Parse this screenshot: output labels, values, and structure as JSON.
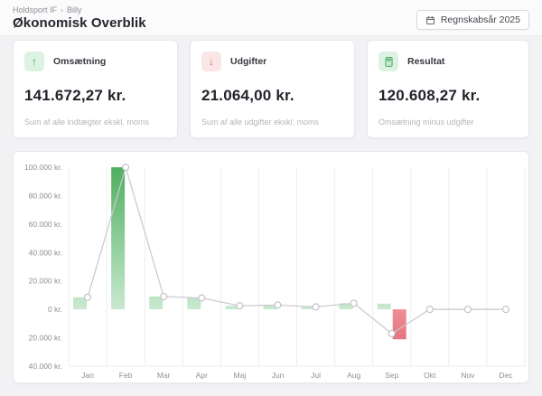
{
  "breadcrumb": {
    "items": [
      "Holdsport IF",
      "Billy"
    ],
    "separator": "›"
  },
  "page_title": "Økonomisk Overblik",
  "fiscal_year_button": {
    "label": "Regnskabsår 2025",
    "icon": "calendar-icon"
  },
  "summary_cards": [
    {
      "id": "omsaetning",
      "label": "Omsætning",
      "value": "141.672,27 kr.",
      "subtitle": "Sum af alle indtægter ekskl. moms",
      "icon": "arrow-up-icon",
      "glyph": "↑",
      "icon_color": "#3fa45b",
      "icon_bg": "#ddf2e3"
    },
    {
      "id": "udgifter",
      "label": "Udgifter",
      "value": "21.064,00 kr.",
      "subtitle": "Sum af alle udgifter ekskl. moms",
      "icon": "arrow-down-icon",
      "glyph": "↓",
      "icon_color": "#dd5f66",
      "icon_bg": "#fbe6e7"
    },
    {
      "id": "resultat",
      "label": "Resultat",
      "value": "120.608,27 kr.",
      "subtitle": "Omsætning minus udgifter",
      "icon": "calculator-icon",
      "glyph": "",
      "icon_color": "#3fa45b",
      "icon_bg": "#ddf2e3"
    }
  ],
  "chart_data": {
    "type": "bar",
    "categories": [
      "Jan",
      "Feb",
      "Mar",
      "Apr",
      "Maj",
      "Jun",
      "Jul",
      "Aug",
      "Sep",
      "Okt",
      "Nov",
      "Dec"
    ],
    "series": [
      {
        "name": "Omsætning",
        "type": "bar",
        "direction": "up",
        "color_top": "#4faf60",
        "color_bottom": "#c9e9cf",
        "values": [
          8500,
          100000,
          9000,
          8000,
          2500,
          3000,
          1700,
          4300,
          4000,
          0,
          0,
          0
        ]
      },
      {
        "name": "Udgifter",
        "type": "bar",
        "direction": "down",
        "color_top": "#ee8f96",
        "color_bottom": "#dd5f6b",
        "values": [
          0,
          0,
          0,
          0,
          0,
          0,
          0,
          0,
          21064,
          0,
          0,
          0
        ]
      },
      {
        "name": "Resultat",
        "type": "line",
        "color": "#c9c9cd",
        "marker_stroke": "#bfbfc4",
        "marker_fill": "#ffffff",
        "values": [
          8500,
          100000,
          9000,
          8000,
          2500,
          3000,
          1700,
          4300,
          -17064,
          0,
          0,
          0
        ]
      }
    ],
    "ylim": [
      -40000,
      100000
    ],
    "y_tick_step": 20000,
    "y_tick_labels": [
      "100.000 kr.",
      "80.000 kr.",
      "60.000 kr.",
      "40.000 kr.",
      "20.000 kr.",
      "0 kr.",
      "20.000 kr.",
      "40.000 kr."
    ],
    "grid": "vertical",
    "grid_color": "#ededf0",
    "legend": "none",
    "title": ""
  }
}
